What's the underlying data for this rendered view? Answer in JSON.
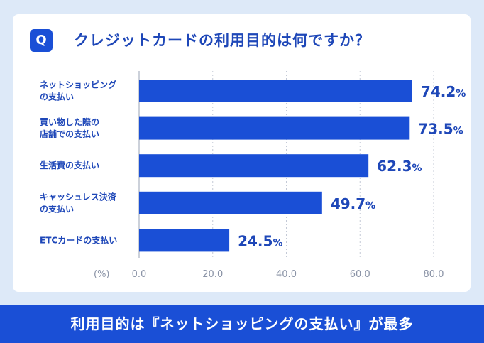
{
  "question": {
    "badge": "Q",
    "text": "クレジットカードの利用目的は何ですか？"
  },
  "colors": {
    "bar": "#1a4fd6",
    "accent_text": "#1e47b8",
    "background": "#dde9f8"
  },
  "chart_data": {
    "type": "bar",
    "orientation": "horizontal",
    "categories": [
      [
        "ネットショッピング",
        "の支払い"
      ],
      [
        "買い物した際の",
        "店舗での支払い"
      ],
      [
        "生活費の支払い"
      ],
      [
        "キャッシュレス決済",
        "の支払い"
      ],
      [
        "ETCカードの支払い"
      ]
    ],
    "values": [
      74.2,
      73.5,
      62.3,
      49.7,
      24.5
    ],
    "value_labels": [
      "74.2",
      "73.5",
      "62.3",
      "49.7",
      "24.5"
    ],
    "value_unit": "%",
    "axis_unit_label": "(%)",
    "xlim": [
      0,
      80
    ],
    "ticks": [
      "0.0",
      "20.0",
      "40.0",
      "60.0",
      "80.0"
    ],
    "grid": "vertical dotted"
  },
  "footer": {
    "text": "利用目的は『ネットショッピングの支払い』が最多"
  }
}
